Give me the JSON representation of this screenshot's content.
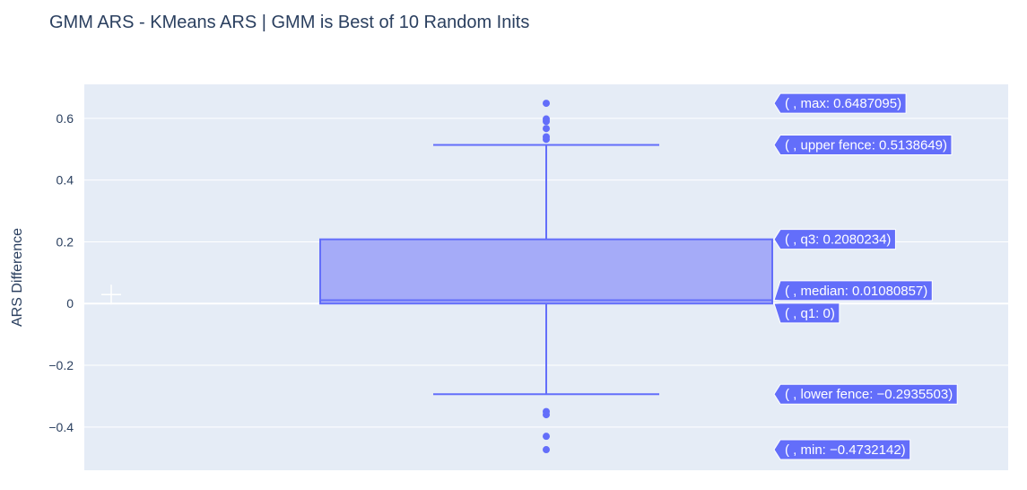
{
  "chart_data": {
    "type": "box",
    "title": "GMM ARS - KMeans ARS | GMM is Best of 10 Random Inits",
    "xlabel": "",
    "ylabel": "ARS Difference",
    "ylim": [
      -0.54,
      0.71
    ],
    "yticks": [
      -0.4,
      -0.2,
      0,
      0.2,
      0.4,
      0.6
    ],
    "ytick_labels": [
      "−0.4",
      "−0.2",
      "0",
      "0.2",
      "0.4",
      "0.6"
    ],
    "grid": true,
    "box": {
      "min": -0.4732142,
      "lower_fence": -0.2935503,
      "q1": 0,
      "median": 0.01080857,
      "q3": 0.2080234,
      "upper_fence": 0.5138649,
      "max": 0.6487095
    },
    "outliers": [
      0.6487095,
      0.598,
      0.59,
      0.567,
      0.54,
      0.532,
      -0.35,
      -0.36,
      -0.43,
      -0.4732142
    ],
    "hover_labels": [
      {
        "key": "max",
        "text": "( , max: 0.6487095)",
        "value": 0.6487095
      },
      {
        "key": "upper_fence",
        "text": "( , upper fence: 0.5138649)",
        "value": 0.5138649
      },
      {
        "key": "q3",
        "text": "( , q3: 0.2080234)",
        "value": 0.2080234
      },
      {
        "key": "median",
        "text": "( , median: 0.01080857)",
        "value": 0.01080857
      },
      {
        "key": "q1",
        "text": "( , q1: 0)",
        "value": 0
      },
      {
        "key": "lower_fence",
        "text": "( , lower fence: −0.2935503)",
        "value": -0.2935503
      },
      {
        "key": "min",
        "text": "( , min: −0.4732142)",
        "value": -0.4732142
      }
    ],
    "colors": {
      "plot_bg": "#e5ecf6",
      "grid": "#ffffff",
      "line": "#636efa",
      "fill": "#a5abf8",
      "label_bg": "#636efa"
    }
  }
}
